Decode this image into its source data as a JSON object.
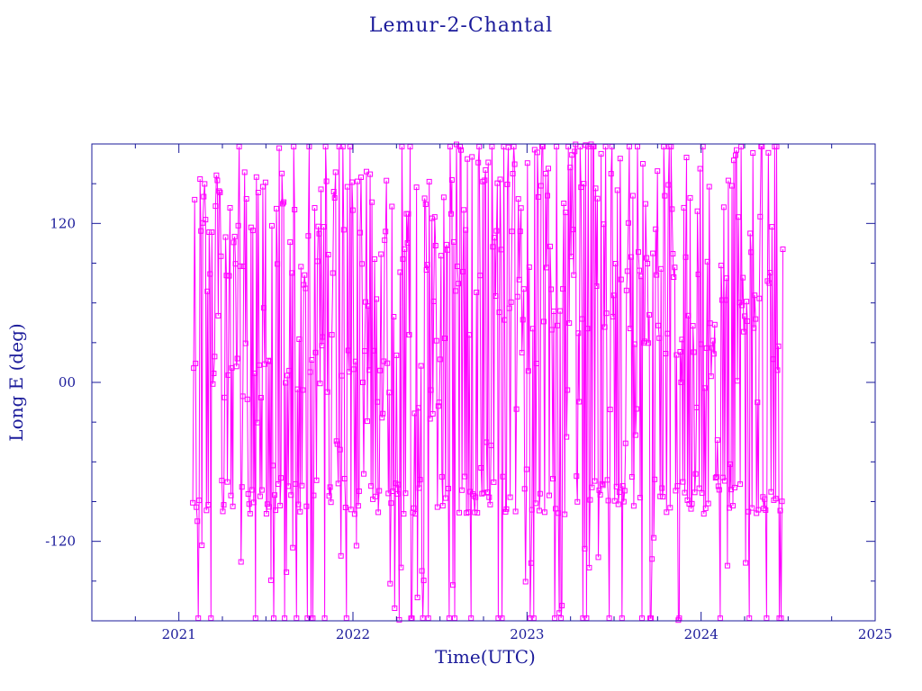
{
  "chart_data": {
    "type": "line",
    "title": "Lemur-2-Chantal",
    "xlabel": "Time(UTC)",
    "ylabel": "Long E (deg)",
    "xlim": [
      2020.5,
      2025.0
    ],
    "ylim": [
      -180,
      180
    ],
    "x_ticks": [
      "2021",
      "2022",
      "2023",
      "2024",
      "2025"
    ],
    "y_ticks": [
      "-120",
      "00",
      "120"
    ],
    "x_tick_values": [
      2021,
      2022,
      2023,
      2024,
      2025
    ],
    "y_tick_values": [
      -120,
      0,
      120
    ],
    "grid": false,
    "series": [
      {
        "color": "#ff00ff",
        "marker": "square",
        "x_start": 2021.08,
        "x_end": 2024.47,
        "clusters": [
          {
            "x_from": 2021.08,
            "x_to": 2022.55,
            "centers": [
              120,
              -85,
              0
            ]
          },
          {
            "x_from": 2022.55,
            "x_to": 2023.55,
            "centers": [
              140,
              -85,
              60
            ]
          },
          {
            "x_from": 2023.55,
            "x_to": 2024.47,
            "centers": [
              60,
              -85,
              150
            ]
          }
        ],
        "y_range": [
          -180,
          180
        ]
      }
    ]
  },
  "colors": {
    "axis": "#1a1a9a",
    "data": "#ff00ff",
    "background": "#ffffff"
  }
}
